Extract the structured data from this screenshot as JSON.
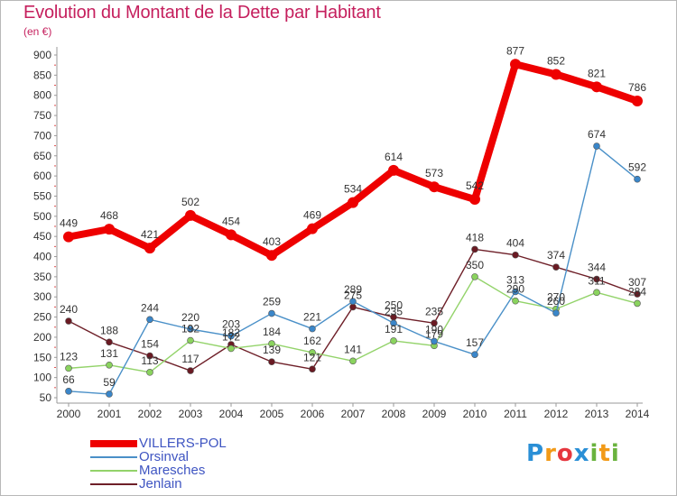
{
  "title": "Evolution du Montant de la Dette par Habitant",
  "unit": "(en €)",
  "logo": {
    "text": "Proxiti",
    "letter_colors": [
      "#2a8fd6",
      "#f29a17",
      "#e6373f",
      "#2a8fd6",
      "#6ab33e",
      "#f29a17",
      "#6ab33e"
    ]
  },
  "chart_data": {
    "type": "line",
    "title": "Evolution du Montant de la Dette par Habitant",
    "ylabel": "(en €)",
    "x": [
      "2000",
      "2001",
      "2002",
      "2003",
      "2004",
      "2005",
      "2006",
      "2007",
      "2008",
      "2009",
      "2010",
      "2011",
      "2012",
      "2013",
      "2014"
    ],
    "yticks": [
      50,
      100,
      150,
      200,
      250,
      300,
      350,
      400,
      450,
      500,
      550,
      600,
      650,
      700,
      750,
      800,
      850,
      900
    ],
    "ylim": [
      50,
      900
    ],
    "grid": false,
    "legend_position": "bottom-left",
    "series": [
      {
        "name": "VILLERS-POL",
        "color": "#ee0000",
        "values": [
          449,
          468,
          421,
          502,
          454,
          403,
          469,
          534,
          614,
          573,
          542,
          877,
          852,
          821,
          786
        ],
        "labels": [
          "449",
          "468",
          "421",
          "502",
          "454",
          "403",
          "469",
          "534",
          "614",
          "573",
          "542",
          "877",
          "852",
          "821",
          "786"
        ]
      },
      {
        "name": "Orsinval",
        "color": "#4a90c8",
        "values": [
          66,
          59,
          244,
          220,
          203,
          259,
          221,
          289,
          235,
          190,
          157,
          313,
          260,
          674,
          592
        ],
        "labels": [
          "66",
          "59",
          "244",
          "220",
          "203",
          "259",
          "221",
          "289",
          "235",
          "190",
          "157",
          "313",
          "260",
          "674",
          "592"
        ]
      },
      {
        "name": "Maresches",
        "color": "#93d36a",
        "values": [
          123,
          131,
          113,
          192,
          172,
          184,
          162,
          141,
          191,
          179,
          350,
          290,
          270,
          311,
          284
        ],
        "labels": [
          "123",
          "131",
          "113",
          "192",
          "172",
          "184",
          "162",
          "141",
          "191",
          "179",
          "350",
          "290",
          "270",
          "311",
          "284"
        ]
      },
      {
        "name": "Jenlain",
        "color": "#6e1f28",
        "values": [
          240,
          188,
          154,
          117,
          182,
          139,
          121,
          275,
          250,
          235,
          418,
          404,
          374,
          344,
          307
        ],
        "labels": [
          "240",
          "188",
          "154",
          "117",
          "182",
          "139",
          "121",
          "275",
          "250",
          "235",
          "418",
          "404",
          "374",
          "344",
          "307"
        ]
      }
    ]
  }
}
